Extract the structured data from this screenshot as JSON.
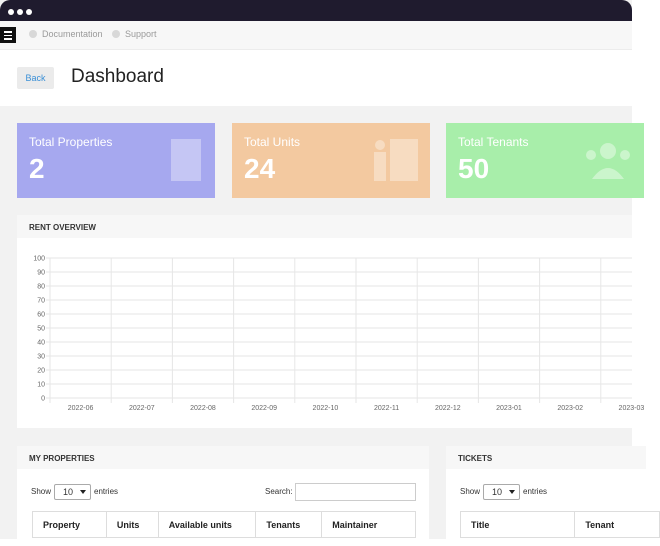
{
  "nav": {
    "links": [
      "Documentation",
      "Support"
    ]
  },
  "header": {
    "back_button": "Back",
    "title": "Dashboard"
  },
  "cards": [
    {
      "label": "Total Properties",
      "value": 2
    },
    {
      "label": "Total Units",
      "value": 24
    },
    {
      "label": "Total Tenants",
      "value": 50
    }
  ],
  "rent_overview": {
    "title": "RENT OVERVIEW",
    "chart": {
      "type": "line",
      "categories": [
        "2022-06",
        "2022-07",
        "2022-08",
        "2022-09",
        "2022-10",
        "2022-11",
        "2022-12",
        "2023-01",
        "2023-02",
        "2023-03"
      ],
      "ylim": [
        0,
        100
      ],
      "yticks": [
        0,
        10,
        20,
        30,
        40,
        50,
        60,
        70,
        80,
        90,
        100
      ],
      "grid": true
    }
  },
  "my_properties": {
    "title": "MY PROPERTIES",
    "show": "Show",
    "page_size": 10,
    "entries": "entries",
    "search": "Search:",
    "columns": [
      "Property",
      "Units",
      "Available units",
      "Tenants",
      "Maintainer"
    ]
  },
  "tickets": {
    "title": "TICKETS",
    "show": "Show",
    "page_size": 10,
    "entries": "entries",
    "columns": [
      "Title",
      "Tenant"
    ]
  }
}
